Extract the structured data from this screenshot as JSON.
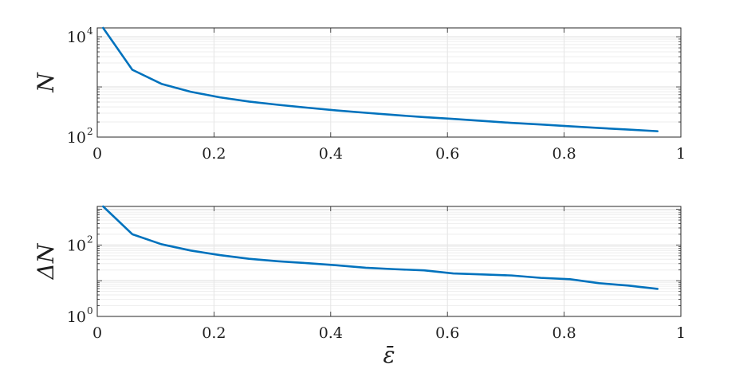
{
  "chart_data": [
    {
      "type": "line",
      "ylabel": "N",
      "xlabel": "",
      "yscale": "log",
      "xlim": [
        0,
        1
      ],
      "ylim": [
        100,
        15000
      ],
      "grid": true,
      "xticks": [
        "0",
        "0.2",
        "0.4",
        "0.6",
        "0.8",
        "1"
      ],
      "yticks": [
        {
          "base": "10",
          "exp": "2"
        },
        {
          "base": "10",
          "exp": "4"
        }
      ],
      "series": [
        {
          "color": "#0072BD",
          "x": [
            0.01,
            0.06,
            0.11,
            0.16,
            0.21,
            0.26,
            0.31,
            0.36,
            0.41,
            0.46,
            0.51,
            0.56,
            0.61,
            0.66,
            0.71,
            0.76,
            0.81,
            0.86,
            0.91,
            0.96
          ],
          "y": [
            15000,
            2200,
            1150,
            800,
            620,
            510,
            440,
            385,
            340,
            305,
            275,
            250,
            230,
            210,
            192,
            178,
            164,
            152,
            141,
            131
          ]
        }
      ]
    },
    {
      "type": "line",
      "ylabel": "ΔN",
      "xlabel": "ε̄",
      "yscale": "log",
      "xlim": [
        0,
        1
      ],
      "ylim": [
        1,
        1200
      ],
      "grid": true,
      "xticks": [
        "0",
        "0.2",
        "0.4",
        "0.6",
        "0.8",
        "1"
      ],
      "yticks": [
        {
          "base": "10",
          "exp": "0"
        },
        {
          "base": "10",
          "exp": "2"
        }
      ],
      "series": [
        {
          "color": "#0072BD",
          "x": [
            0.01,
            0.06,
            0.11,
            0.16,
            0.21,
            0.26,
            0.31,
            0.36,
            0.41,
            0.46,
            0.51,
            0.56,
            0.61,
            0.66,
            0.71,
            0.76,
            0.81,
            0.86,
            0.91,
            0.96
          ],
          "y": [
            1200,
            200,
            105,
            70,
            52,
            41,
            35,
            31,
            27,
            23,
            21,
            19.5,
            16,
            15,
            14,
            12,
            11,
            8.5,
            7.3,
            5.9
          ]
        }
      ]
    }
  ]
}
